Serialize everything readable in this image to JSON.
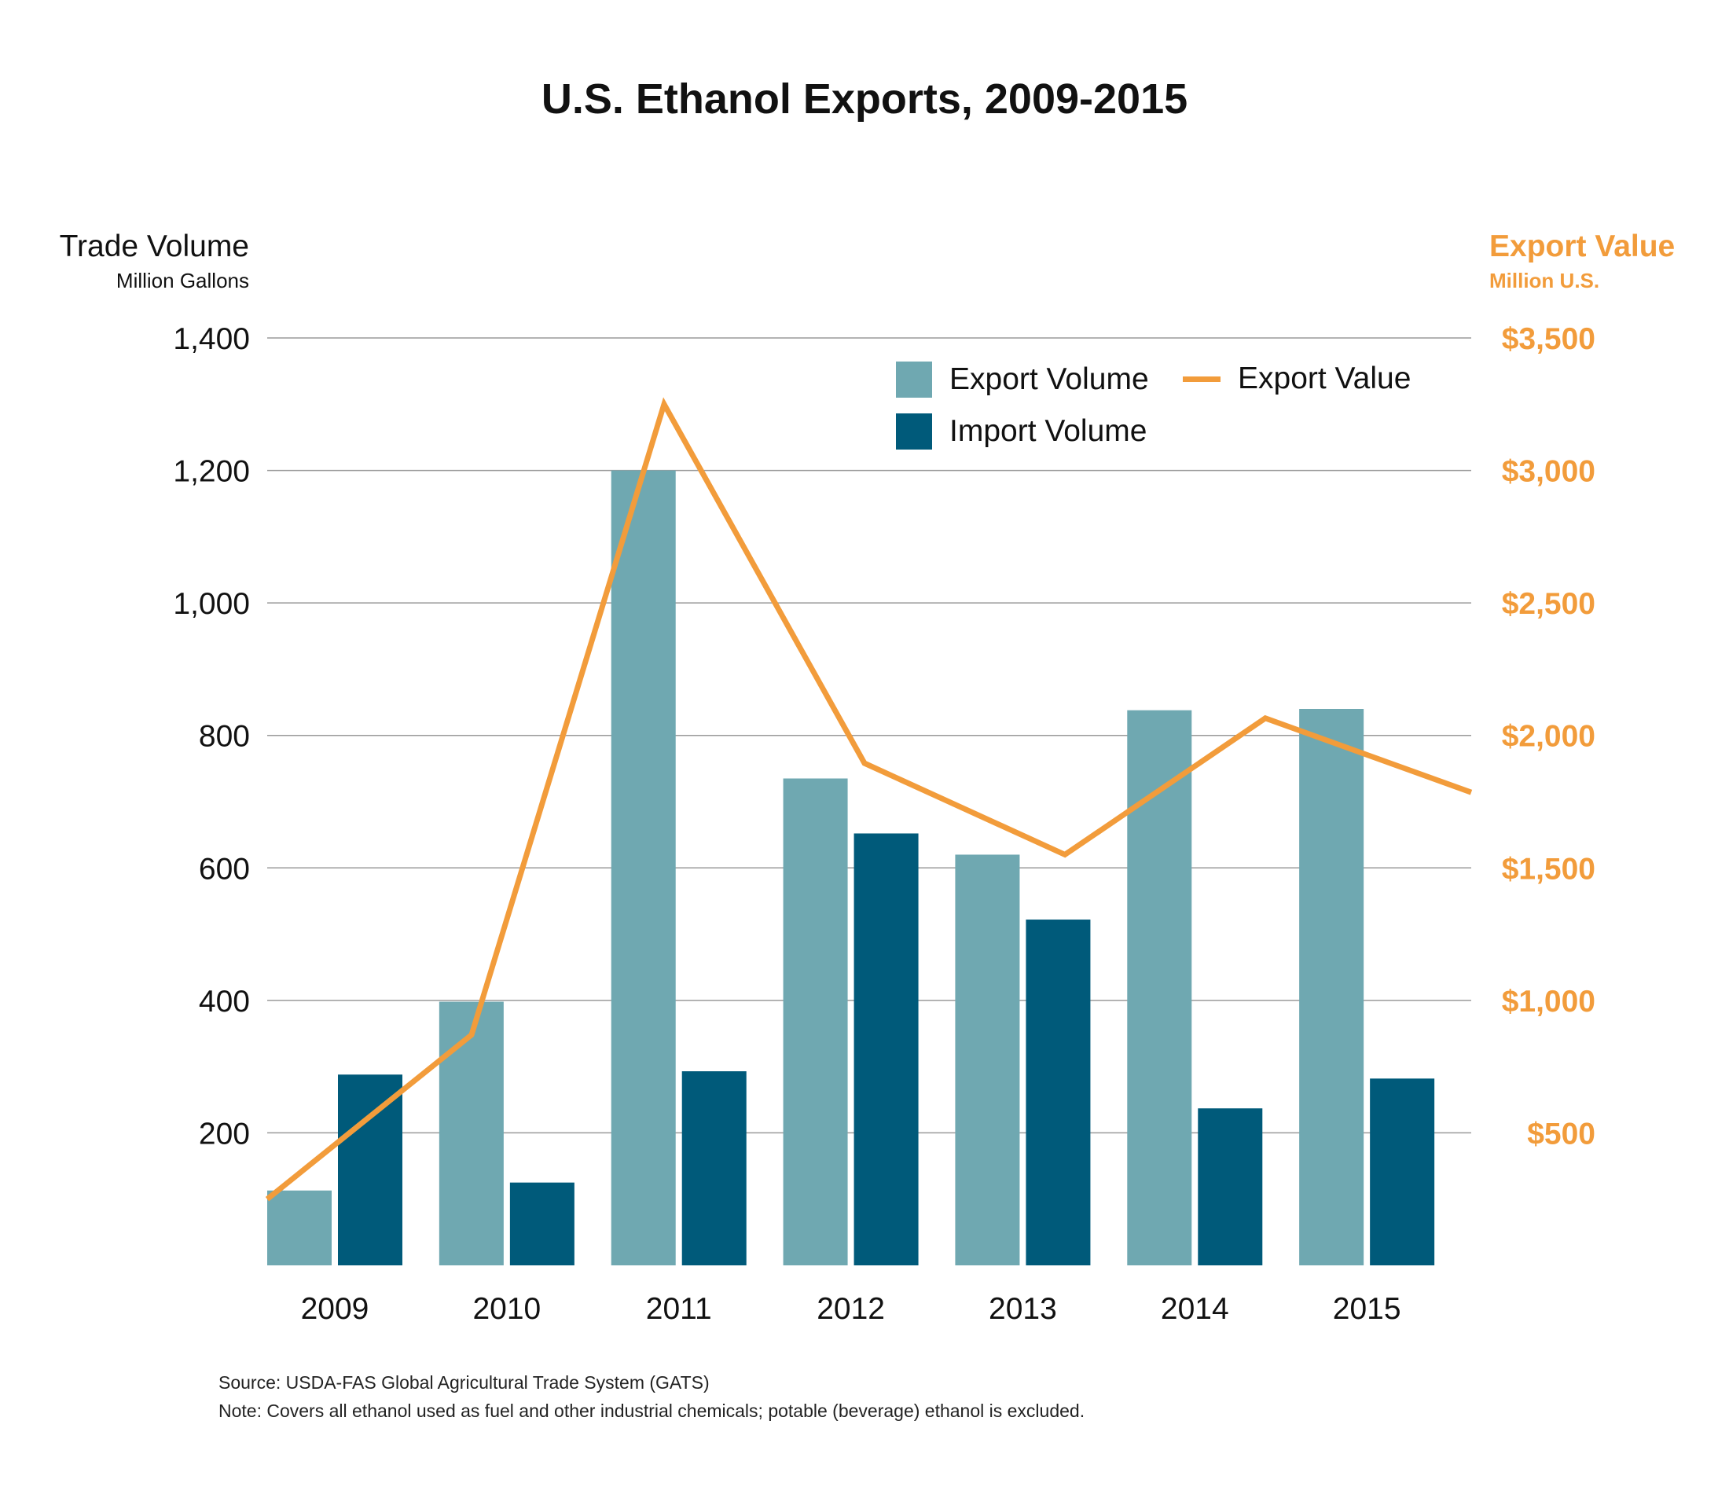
{
  "chart_data": {
    "type": "bar",
    "title": "U.S. Ethanol Exports, 2009-2015",
    "categories": [
      "2009",
      "2010",
      "2011",
      "2012",
      "2013",
      "2014",
      "2015"
    ],
    "series": [
      {
        "name": "Export Volume",
        "type": "bar",
        "axis": "left",
        "color": "#6fa8b1",
        "values": [
          113,
          398,
          1200,
          735,
          620,
          838,
          840
        ]
      },
      {
        "name": "Import Volume",
        "type": "bar",
        "axis": "left",
        "color": "#005a7a",
        "values": [
          288,
          125,
          293,
          652,
          522,
          237,
          282
        ]
      },
      {
        "name": "Export Value",
        "type": "line",
        "axis": "right",
        "color": "#f29c3b",
        "values": [
          250,
          870,
          3250,
          1895,
          1550,
          2065,
          1785
        ]
      }
    ],
    "left_axis": {
      "label": "Trade Volume",
      "sublabel": "Million Gallons",
      "ticks": [
        "200",
        "400",
        "600",
        "800",
        "1,000",
        "1,200",
        "1,400"
      ],
      "tick_values": [
        200,
        400,
        600,
        800,
        1000,
        1200,
        1400
      ],
      "ylim": [
        0,
        1400
      ]
    },
    "right_axis": {
      "label": "Export Value",
      "sublabel": "Million U.S.",
      "ticks": [
        "$500",
        "$1,000",
        "$1,500",
        "$2,000",
        "$2,500",
        "$3,000",
        "$3,500"
      ],
      "tick_values": [
        500,
        1000,
        1500,
        2000,
        2500,
        3000,
        3500
      ],
      "ylim": [
        0,
        3500
      ],
      "color": "#f29c3b"
    },
    "grid": true,
    "legend_position": "top-right",
    "source": "Source:  USDA-FAS Global Agricultural Trade System (GATS)",
    "note": "Note: Covers all ethanol used as fuel and other industrial chemicals; potable (beverage) ethanol is excluded."
  }
}
